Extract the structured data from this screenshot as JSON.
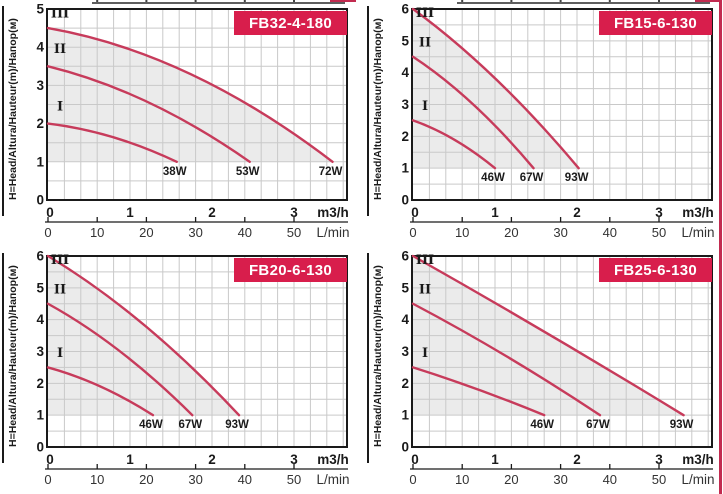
{
  "page": {
    "background": "#FFFFFF",
    "colors": {
      "accent": "#D81E4C",
      "badge_text": "#FFFFFF",
      "curve": "#C73B5B",
      "grid": "#C9C9C9",
      "fill": "#EBEBEB",
      "plot_border": "#1A1A1A",
      "axis_text": "#1A1A1A",
      "secondary_axis_text": "#333333",
      "page_edge": "#C22B50"
    }
  },
  "chart_data": [
    {
      "type": "line",
      "title": "FB32-4-180",
      "ylabel": "H=Head/Altura/Hauteur(m)/Напор(м)",
      "xlabel_primary": "m3/h",
      "xlabel_secondary": "L/min",
      "x_ticks_m3h": [
        0,
        1,
        2,
        3
      ],
      "x_ticks_lmin": [
        0,
        10,
        20,
        30,
        40,
        50
      ],
      "y_ticks": [
        0,
        1,
        2,
        3,
        4,
        5
      ],
      "ylim": [
        0,
        5
      ],
      "xlim_m3h": [
        0,
        3.65
      ],
      "grid": true,
      "shaded_region": "between curve III and H=1 line",
      "series": [
        {
          "speed": "I",
          "power": "38W",
          "head_at_0_m3h": 2.0,
          "head_at_mid_m": 1.65,
          "max_flow_m3h": 1.57,
          "head_at_max_flow_m": 1.0
        },
        {
          "speed": "II",
          "power": "53W",
          "head_at_0_m3h": 3.5,
          "head_at_mid_m": 2.55,
          "max_flow_m3h": 2.46,
          "head_at_max_flow_m": 1.0
        },
        {
          "speed": "III",
          "power": "72W",
          "head_at_0_m3h": 4.5,
          "head_at_mid_m": 3.3,
          "max_flow_m3h": 3.47,
          "head_at_max_flow_m": 1.0
        }
      ]
    },
    {
      "type": "line",
      "title": "FB15-6-130",
      "ylabel": "H=Head/Altura/Hauteur(m)/Напор(м)",
      "xlabel_primary": "m3/h",
      "xlabel_secondary": "L/min",
      "x_ticks_m3h": [
        0,
        1,
        2,
        3
      ],
      "x_ticks_lmin": [
        0,
        10,
        20,
        30,
        40,
        50
      ],
      "y_ticks": [
        0,
        1,
        2,
        3,
        4,
        5,
        6
      ],
      "ylim": [
        0,
        6
      ],
      "xlim_m3h": [
        0,
        3.65
      ],
      "grid": true,
      "shaded_region": "between curve III and H=1 line",
      "series": [
        {
          "speed": "I",
          "power": "46W",
          "head_at_0_m3h": 2.5,
          "head_at_mid_m": 1.9,
          "max_flow_m3h": 1.0,
          "head_at_max_flow_m": 1.0
        },
        {
          "speed": "II",
          "power": "67W",
          "head_at_0_m3h": 4.5,
          "head_at_mid_m": 3.0,
          "max_flow_m3h": 1.47,
          "head_at_max_flow_m": 1.0
        },
        {
          "speed": "III",
          "power": "93W",
          "head_at_0_m3h": 6.0,
          "head_at_mid_m": 3.8,
          "max_flow_m3h": 2.02,
          "head_at_max_flow_m": 1.0
        }
      ]
    },
    {
      "type": "line",
      "title": "FB20-6-130",
      "ylabel": "H=Head/Altura/Hauteur(m)/Напор(м)",
      "xlabel_primary": "m3/h",
      "xlabel_secondary": "L/min",
      "x_ticks_m3h": [
        0,
        1,
        2,
        3
      ],
      "x_ticks_lmin": [
        0,
        10,
        20,
        30,
        40,
        50
      ],
      "y_ticks": [
        0,
        1,
        2,
        3,
        4,
        5,
        6
      ],
      "ylim": [
        0,
        6
      ],
      "xlim_m3h": [
        0,
        3.65
      ],
      "grid": true,
      "shaded_region": "between curve III and H=1 line",
      "series": [
        {
          "speed": "I",
          "power": "46W",
          "head_at_0_m3h": 2.5,
          "head_at_mid_m": 1.9,
          "max_flow_m3h": 1.28,
          "head_at_max_flow_m": 1.0
        },
        {
          "speed": "II",
          "power": "67W",
          "head_at_0_m3h": 4.5,
          "head_at_mid_m": 3.0,
          "max_flow_m3h": 1.76,
          "head_at_max_flow_m": 1.0
        },
        {
          "speed": "III",
          "power": "93W",
          "head_at_0_m3h": 6.0,
          "head_at_mid_m": 3.85,
          "max_flow_m3h": 2.33,
          "head_at_max_flow_m": 1.0
        }
      ]
    },
    {
      "type": "line",
      "title": "FB25-6-130",
      "ylabel": "H=Head/Altura/Hauteur(m)/Напор(м)",
      "xlabel_primary": "m3/h",
      "xlabel_secondary": "L/min",
      "x_ticks_m3h": [
        0,
        1,
        2,
        3
      ],
      "x_ticks_lmin": [
        0,
        10,
        20,
        30,
        40,
        50
      ],
      "y_ticks": [
        0,
        1,
        2,
        3,
        4,
        5,
        6
      ],
      "ylim": [
        0,
        6
      ],
      "xlim_m3h": [
        0,
        3.65
      ],
      "grid": true,
      "shaded_region": "between curve III and H=1 line",
      "series": [
        {
          "speed": "I",
          "power": "46W",
          "head_at_0_m3h": 2.5,
          "head_at_mid_m": 1.8,
          "max_flow_m3h": 1.6,
          "head_at_max_flow_m": 1.0
        },
        {
          "speed": "II",
          "power": "67W",
          "head_at_0_m3h": 4.5,
          "head_at_mid_m": 2.85,
          "max_flow_m3h": 2.28,
          "head_at_max_flow_m": 1.0
        },
        {
          "speed": "III",
          "power": "93W",
          "head_at_0_m3h": 6.0,
          "head_at_mid_m": 3.55,
          "max_flow_m3h": 3.3,
          "head_at_max_flow_m": 1.0
        }
      ]
    }
  ]
}
